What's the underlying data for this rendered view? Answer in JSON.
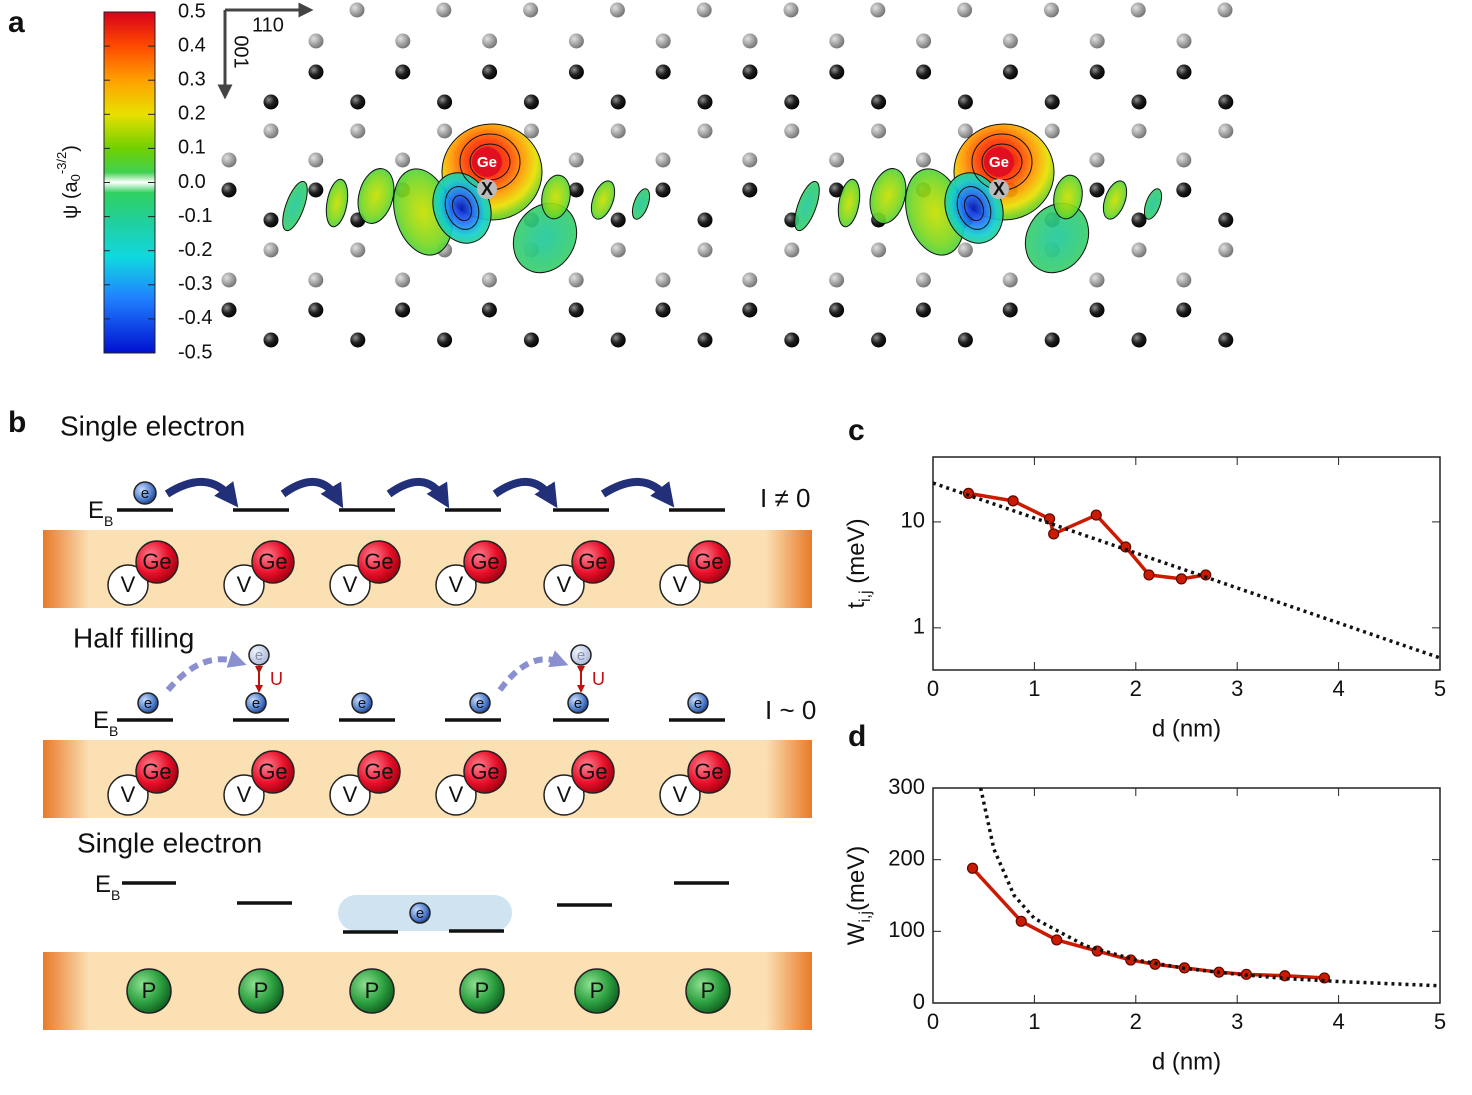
{
  "panel_labels": [
    "a",
    "b",
    "c",
    "d"
  ],
  "panel_a": {
    "colorbar": {
      "label": "ψ (a",
      "label_sub": "0",
      "label_sup": "-3/2",
      "label_end": ")",
      "lim": [
        -0.5,
        0.5
      ],
      "ticks": [
        0.5,
        0.4,
        0.3,
        0.2,
        0.1,
        {
          "value": 0,
          "label": "0.0"
        },
        -0.1,
        -0.2,
        -0.3,
        -0.4,
        -0.5
      ]
    },
    "axes": [
      "110",
      "001"
    ],
    "atoms": [
      "Ge",
      "X"
    ]
  },
  "panel_b": {
    "rows": [
      {
        "title": "Single electron",
        "coupling": "I ≠ 0"
      },
      {
        "title": "Half filling",
        "coupling": "I ~ 0"
      },
      {
        "title": "Single electron"
      }
    ],
    "level": "E",
    "level_sub": "B",
    "electron": "e",
    "interaction": "U",
    "vacancy": "V",
    "donors": [
      "Ge",
      "P"
    ]
  },
  "chart_data": [
    {
      "type": "line",
      "xlabel": "d (nm)",
      "ylabel": "t",
      "ylabel_sub": "i,j",
      "ylabel_unit": " (meV)",
      "log_y": true,
      "xlim": [
        0,
        5
      ],
      "ylim": [
        0.4,
        41
      ],
      "xticks": [
        0,
        1,
        2,
        3,
        4,
        5
      ],
      "yticks": [
        1,
        10
      ],
      "series": [
        {
          "x": [
            0.35,
            0.79,
            1.15,
            1.19,
            1.61,
            1.9,
            2.13,
            2.45,
            2.69
          ],
          "values": [
            18.6,
            15.8,
            10.7,
            7.7,
            11.6,
            5.8,
            3.16,
            2.9,
            3.16
          ],
          "color": "#cc1a00",
          "markers": true
        },
        {
          "x": [
            0,
            5
          ],
          "values": [
            23.3,
            0.52
          ],
          "color": "#111111",
          "dashed": true
        }
      ]
    },
    {
      "type": "line",
      "xlabel": "d (nm)",
      "ylabel": "W",
      "ylabel_sub": "i,j",
      "ylabel_unit": "(meV)",
      "log_y": false,
      "xlim": [
        0,
        5
      ],
      "ylim": [
        0,
        300
      ],
      "xticks": [
        0,
        1,
        2,
        3,
        4,
        5
      ],
      "yticks": [
        0,
        100,
        200,
        300
      ],
      "series": [
        {
          "x": [
            0.39,
            0.87,
            1.22,
            1.62,
            1.95,
            2.19,
            2.48,
            2.82,
            3.09,
            3.47,
            3.86
          ],
          "values": [
            188,
            114,
            88,
            72.5,
            60,
            54,
            49,
            43,
            40,
            38,
            35
          ],
          "color": "#cc1a00",
          "markers": true
        },
        {
          "x": [
            0.47,
            0.6,
            0.8,
            1,
            1.5,
            2,
            2.5,
            3,
            3.5,
            4,
            4.5,
            5
          ],
          "values": [
            300,
            215,
            150,
            118,
            80,
            60,
            48,
            40,
            34,
            30,
            27,
            24
          ],
          "color": "#111111",
          "dashed": true
        }
      ]
    }
  ]
}
